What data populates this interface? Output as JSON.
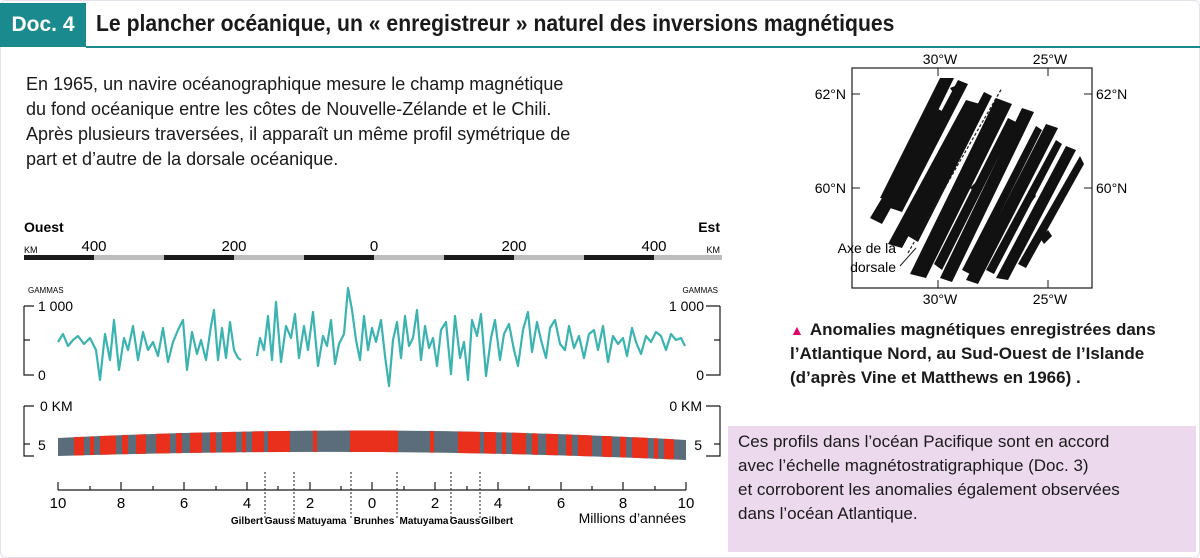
{
  "doc_label": "Doc. 4",
  "title": "Le plancher océanique, un « enregistreur » naturel des inversions magnétiques",
  "intro": [
    "En 1965, un navire océanographique mesure le champ magnétique",
    "du fond océanique entre les côtes de Nouvelle-Zélande et le Chili.",
    "Après plusieurs traversées, il apparaît un même profil symétrique de",
    "part et d’autre de la dorsale océanique."
  ],
  "profile": {
    "west_label": "Ouest",
    "east_label": "Est",
    "km_unit": "KM",
    "distance_ticks": [
      "400",
      "200",
      "0",
      "200",
      "400"
    ],
    "gammas_unit": "GAMMAS",
    "gammas_ticks": [
      "1 000",
      "0"
    ],
    "depth_ticks": [
      "0 KM",
      "5"
    ],
    "age_ticks": [
      "10",
      "8",
      "6",
      "4",
      "2",
      "0",
      "2",
      "4",
      "6",
      "8",
      "10"
    ],
    "epochs": [
      "Gilbert",
      "Gauss",
      "Matuyama",
      "Brunhes",
      "Matuyama",
      "Gauss",
      "Gilbert"
    ],
    "age_unit": "Millions d’années",
    "colors": {
      "curve": "#3bb3b0",
      "normal": "#e8301c",
      "reverse": "#5b6d7a"
    }
  },
  "map": {
    "lon_labels": [
      "30°W",
      "25°W"
    ],
    "lat_labels": [
      "62°N",
      "60°N"
    ],
    "axis_label": [
      "Axe de la",
      "dorsale"
    ]
  },
  "caption": [
    "Anomalies magnétiques enregistrées dans",
    "l’Atlantique Nord, au Sud-Ouest de l’Islande",
    "(d’après Vine et Matthews en 1966) ."
  ],
  "note": [
    "Ces profils dans l’océan Pacifique sont en accord",
    "avec l’échelle magnétostratigraphique (Doc. 3)",
    "et corroborent les anomalies également observées",
    "dans l’océan Atlantique."
  ]
}
